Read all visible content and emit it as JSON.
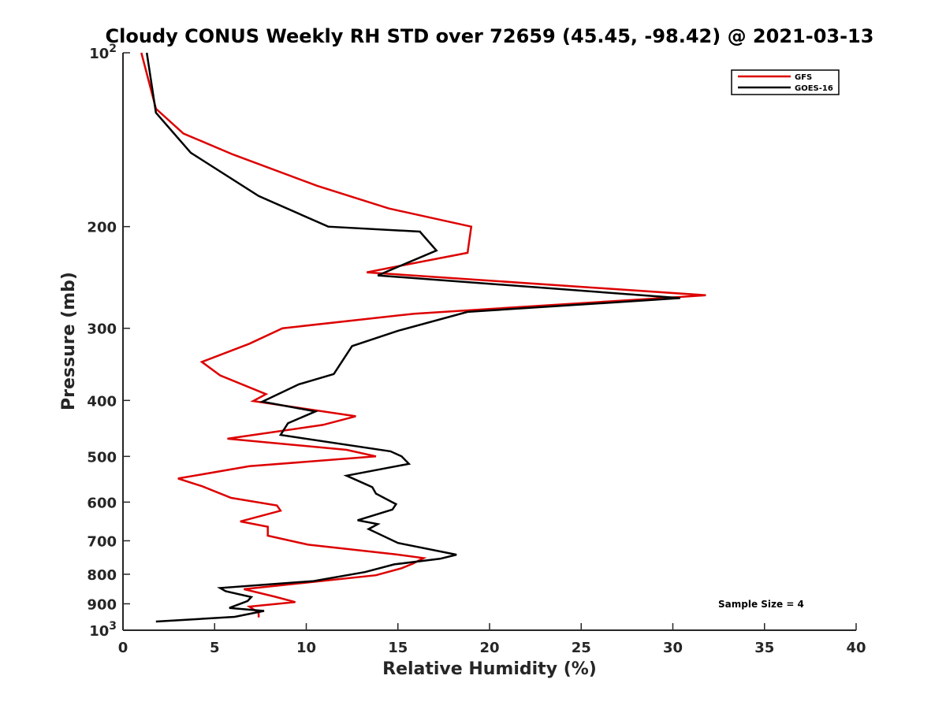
{
  "chart_data": {
    "type": "line",
    "title": "Cloudy CONUS Weekly RH STD over 72659 (45.45, -98.42) @ 2021-03-13",
    "xlabel": "Relative Humidity (%)",
    "ylabel": "Pressure (mb)",
    "xlim": [
      0,
      40
    ],
    "ylim": [
      100,
      1000
    ],
    "y_scale": "log",
    "y_reversed": true,
    "x_ticks": [
      "0",
      "5",
      "10",
      "15",
      "20",
      "25",
      "30",
      "35",
      "40"
    ],
    "y_ticks": [
      {
        "value": 100,
        "label": "10",
        "sup": "2"
      },
      {
        "value": 200,
        "label": "200"
      },
      {
        "value": 300,
        "label": "300"
      },
      {
        "value": 400,
        "label": "400"
      },
      {
        "value": 500,
        "label": "500"
      },
      {
        "value": 600,
        "label": "600"
      },
      {
        "value": 700,
        "label": "700"
      },
      {
        "value": 800,
        "label": "800"
      },
      {
        "value": 900,
        "label": "900"
      },
      {
        "value": 1000,
        "label": "10",
        "sup": "3"
      }
    ],
    "legend_position": "top-right",
    "grid": false,
    "annotation": "Sample Size = 4",
    "series": [
      {
        "name": "GFS",
        "color": "#dd0000",
        "points": [
          [
            1.0,
            100
          ],
          [
            1.8,
            125
          ],
          [
            3.3,
            138
          ],
          [
            6.0,
            150
          ],
          [
            10.6,
            170
          ],
          [
            14.5,
            186
          ],
          [
            19.0,
            200
          ],
          [
            18.8,
            222
          ],
          [
            13.3,
            240
          ],
          [
            31.8,
            263
          ],
          [
            30.2,
            265
          ],
          [
            15.9,
            283
          ],
          [
            8.7,
            300
          ],
          [
            6.9,
            319
          ],
          [
            4.3,
            343
          ],
          [
            5.3,
            362
          ],
          [
            7.8,
            390
          ],
          [
            7.1,
            401
          ],
          [
            12.7,
            426
          ],
          [
            10.9,
            441
          ],
          [
            5.7,
            466
          ],
          [
            12.2,
            487
          ],
          [
            13.8,
            500
          ],
          [
            6.9,
            520
          ],
          [
            3.0,
            546
          ],
          [
            4.3,
            563
          ],
          [
            5.9,
            590
          ],
          [
            8.4,
            608
          ],
          [
            8.6,
            621
          ],
          [
            6.4,
            648
          ],
          [
            7.9,
            662
          ],
          [
            7.9,
            686
          ],
          [
            10.1,
            711
          ],
          [
            14.9,
            739
          ],
          [
            16.4,
            750
          ],
          [
            15.8,
            767
          ],
          [
            15.2,
            781
          ],
          [
            13.8,
            803
          ],
          [
            6.6,
            849
          ],
          [
            8.3,
            875
          ],
          [
            9.4,
            894
          ],
          [
            6.9,
            910
          ],
          [
            7.4,
            933
          ],
          [
            7.4,
            950
          ]
        ]
      },
      {
        "name": "GOES-16",
        "color": "#000000",
        "points": [
          [
            1.3,
            100
          ],
          [
            1.8,
            127
          ],
          [
            3.7,
            149
          ],
          [
            7.4,
            177
          ],
          [
            11.2,
            200
          ],
          [
            16.2,
            204
          ],
          [
            17.1,
            220
          ],
          [
            13.9,
            243
          ],
          [
            30.4,
            266
          ],
          [
            18.8,
            281
          ],
          [
            15.0,
            303
          ],
          [
            12.5,
            322
          ],
          [
            11.5,
            360
          ],
          [
            9.6,
            375
          ],
          [
            7.6,
            402
          ],
          [
            10.5,
            418
          ],
          [
            9.0,
            438
          ],
          [
            8.6,
            459
          ],
          [
            14.6,
            490
          ],
          [
            15.2,
            500
          ],
          [
            15.6,
            515
          ],
          [
            12.2,
            540
          ],
          [
            13.6,
            565
          ],
          [
            13.8,
            580
          ],
          [
            14.9,
            605
          ],
          [
            14.7,
            618
          ],
          [
            12.8,
            645
          ],
          [
            13.9,
            655
          ],
          [
            13.4,
            668
          ],
          [
            15.0,
            706
          ],
          [
            18.2,
            740
          ],
          [
            17.3,
            752
          ],
          [
            14.8,
            769
          ],
          [
            13.2,
            793
          ],
          [
            10.4,
            822
          ],
          [
            5.3,
            845
          ],
          [
            5.6,
            856
          ],
          [
            7.0,
            876
          ],
          [
            6.8,
            890
          ],
          [
            5.8,
            915
          ],
          [
            7.7,
            926
          ],
          [
            6.1,
            948
          ],
          [
            1.8,
            966
          ]
        ]
      }
    ]
  }
}
